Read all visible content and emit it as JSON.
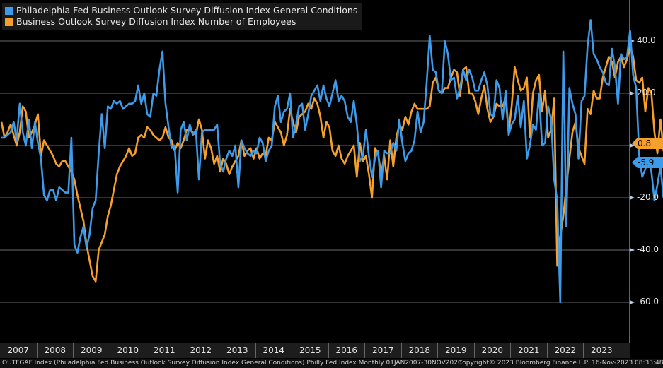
{
  "legend": [
    {
      "label": "Philadelphia Fed Business Outlook Survey Diffusion Index General Conditions",
      "color": "#3d9be9"
    },
    {
      "label": "Business Outlook Survey Diffusion Index Number of Employees",
      "color": "#f6a02b"
    }
  ],
  "badges": {
    "employees": {
      "text": "0.8",
      "color": "#f6a02b"
    },
    "general": {
      "text": "-5.9",
      "color": "#3d9be9"
    }
  },
  "footer": {
    "left": "OUTFGAF Index (Philadelphia Fed Business Outlook Survey Diffusion Index General Conditions) Philly Fed Index  Monthly 01JAN2007-30NOV2023",
    "right_copyright": "Copyright© 2023 Bloomberg Finance L.P.",
    "right_timestamp": "16-Nov-2023 08:33:48"
  },
  "chart_data": {
    "type": "line",
    "x_start": "2007-01",
    "x_end": "2023-10",
    "years": [
      "2007",
      "2008",
      "2009",
      "2010",
      "2011",
      "2012",
      "2013",
      "2014",
      "2015",
      "2016",
      "2017",
      "2018",
      "2019",
      "2020",
      "2021",
      "2022",
      "2023"
    ],
    "yticks": [
      "40.0",
      "20.0",
      "0.0",
      "-20.0",
      "-40.0",
      "-60.0"
    ],
    "ylim": [
      -72,
      55
    ],
    "grid": true,
    "legend_position": "top-left",
    "series": [
      {
        "name": "Philadelphia Fed Business Outlook Survey Diffusion Index General Conditions",
        "color": "#3d9be9",
        "values": [
          3,
          3,
          4,
          5,
          9,
          2,
          16,
          5,
          0,
          10,
          -1,
          9,
          1,
          -5,
          -19,
          -21,
          -17,
          -17,
          -21,
          -16,
          -17,
          -18,
          -18,
          3,
          -38,
          -41,
          -35,
          -31,
          -39,
          -34,
          -24,
          -21,
          -3,
          12,
          -1,
          15,
          14,
          17,
          16,
          17,
          14,
          15,
          16,
          16,
          17,
          23,
          16,
          20,
          12,
          11,
          20,
          19,
          29,
          36,
          16,
          7,
          -1,
          0,
          -18,
          6,
          9,
          2,
          8,
          4,
          6,
          -13,
          5,
          6,
          6,
          6,
          6,
          8,
          -7,
          -10,
          -5,
          -2,
          -4,
          0,
          -16,
          2,
          -1,
          -3,
          -4,
          -2,
          -3,
          3,
          1,
          -6,
          -2,
          0,
          15,
          19,
          9,
          13,
          14,
          20,
          3,
          8,
          15,
          16,
          6,
          12,
          19,
          21,
          23,
          17,
          23,
          18,
          15,
          20,
          25,
          17,
          19,
          17,
          11,
          9,
          17,
          8,
          -6,
          -4,
          6,
          -4,
          -12,
          -5,
          -2,
          -16,
          -2,
          -3,
          -3,
          1,
          -2,
          10,
          1,
          -6,
          -3,
          -2,
          2,
          13,
          5,
          9,
          24,
          42,
          29,
          28,
          21,
          20,
          40,
          35,
          25,
          26,
          18,
          22,
          29,
          25,
          29,
          26,
          21,
          21,
          25,
          28,
          23,
          12,
          11,
          25,
          22,
          10,
          21,
          4,
          8,
          10,
          19,
          7,
          17,
          -5,
          0,
          8,
          6,
          20,
          0,
          1,
          15,
          10,
          -13,
          -21,
          -60,
          36,
          -31,
          22,
          16,
          12,
          -5,
          17,
          19,
          38,
          48,
          35,
          33,
          30,
          28,
          24,
          23,
          37,
          30,
          16,
          35,
          33,
          34,
          44,
          27,
          22,
          -4,
          -12,
          -9,
          -5,
          -10,
          -21,
          -15,
          -8,
          -20,
          -14,
          -28,
          -24,
          -16,
          -8,
          -20,
          -9,
          -8,
          -10,
          -14,
          -25,
          -26,
          -20,
          -11,
          -8,
          -15,
          -13,
          12,
          -9,
          -16,
          -14,
          -13,
          -11,
          -9,
          -5.9
        ]
      },
      {
        "name": "Business Outlook Survey Diffusion Index Number of Employees",
        "color": "#f6a02b",
        "values": [
          9,
          3,
          5,
          8,
          4,
          0,
          5,
          15,
          13,
          3,
          5,
          8,
          12,
          -4,
          2,
          0,
          -2,
          -4,
          -7,
          -8,
          -6,
          -6,
          -8,
          -10,
          -13,
          -19,
          -24,
          -29,
          -38,
          -44,
          -50,
          -52,
          -40,
          -37,
          -34,
          -27,
          -23,
          -17,
          -11,
          -8,
          -6,
          -4,
          -1,
          -4,
          -3,
          3,
          4,
          3,
          7,
          6,
          4,
          3,
          2,
          3,
          7,
          3,
          2,
          -2,
          1,
          -1,
          2,
          6,
          6,
          5,
          4,
          10,
          6,
          -5,
          2,
          -1,
          -7,
          -4,
          -10,
          -5,
          -7,
          -11,
          -8,
          -6,
          -4,
          2,
          -4,
          -2,
          -1,
          -5,
          -1,
          -5,
          -3,
          -4,
          3,
          2,
          9,
          7,
          5,
          0,
          4,
          14,
          9,
          5,
          11,
          12,
          13,
          16,
          14,
          18,
          16,
          11,
          3,
          9,
          7,
          -2,
          -4,
          0,
          -5,
          -7,
          -4,
          -2,
          0,
          -12,
          1,
          -6,
          -4,
          -11,
          -20,
          -1,
          -3,
          -11,
          -4,
          -13,
          2,
          -8,
          3,
          8,
          6,
          11,
          8,
          13,
          16,
          14,
          14,
          14,
          14,
          15,
          24,
          26,
          21,
          20,
          22,
          22,
          26,
          29,
          28,
          19,
          29,
          30,
          20,
          20,
          17,
          12,
          18,
          23,
          14,
          9,
          11,
          16,
          15,
          15,
          18,
          5,
          15,
          30,
          25,
          21,
          22,
          26,
          3,
          20,
          25,
          27,
          13,
          21,
          3,
          6,
          18,
          -46,
          -35,
          -27,
          -16,
          -5,
          5,
          9,
          -1,
          -4,
          -7,
          14,
          12,
          21,
          18,
          18,
          26,
          30,
          34,
          32,
          26,
          32,
          34,
          30,
          33,
          38,
          34,
          25,
          24,
          26,
          13,
          22,
          20,
          5,
          -3,
          10,
          -2,
          0,
          -9,
          -3,
          -9,
          -3,
          -5,
          3,
          8,
          -1,
          -7,
          7,
          -8,
          -10,
          5,
          -2,
          -3,
          -6,
          -1,
          -2,
          -10,
          -5,
          -1,
          -3,
          3,
          -4,
          -7,
          -1,
          -6,
          -1,
          -5,
          -1,
          -3,
          2,
          0.8
        ]
      }
    ]
  }
}
